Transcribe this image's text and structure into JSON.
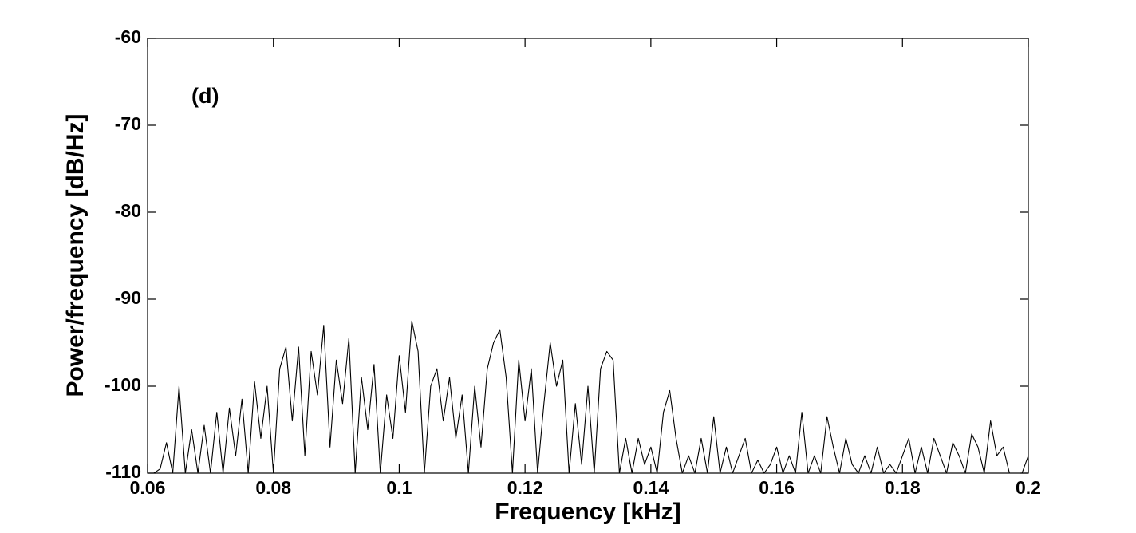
{
  "chart_data": {
    "type": "line",
    "annotation": "(d)",
    "x_label": "Frequency [kHz]",
    "y_label": "Power/frequency [dB/Hz]",
    "color": "#000000",
    "xlim": [
      0.06,
      0.2
    ],
    "ylim": [
      -110,
      -60
    ],
    "xticks": [
      0.06,
      0.08,
      0.1,
      0.12,
      0.14,
      0.16,
      0.18,
      0.2
    ],
    "yticks": [
      -110,
      -100,
      -90,
      -80,
      -70,
      -60
    ],
    "x": [
      0.06,
      0.061,
      0.062,
      0.063,
      0.064,
      0.065,
      0.066,
      0.067,
      0.068,
      0.069,
      0.07,
      0.071,
      0.072,
      0.073,
      0.074,
      0.075,
      0.076,
      0.077,
      0.078,
      0.079,
      0.08,
      0.081,
      0.082,
      0.083,
      0.084,
      0.085,
      0.086,
      0.087,
      0.088,
      0.089,
      0.09,
      0.091,
      0.092,
      0.093,
      0.094,
      0.095,
      0.096,
      0.097,
      0.098,
      0.099,
      0.1,
      0.101,
      0.102,
      0.103,
      0.104,
      0.105,
      0.106,
      0.107,
      0.108,
      0.109,
      0.11,
      0.111,
      0.112,
      0.113,
      0.114,
      0.115,
      0.116,
      0.117,
      0.118,
      0.119,
      0.12,
      0.121,
      0.122,
      0.123,
      0.124,
      0.125,
      0.126,
      0.127,
      0.128,
      0.129,
      0.13,
      0.131,
      0.132,
      0.133,
      0.134,
      0.135,
      0.136,
      0.137,
      0.138,
      0.139,
      0.14,
      0.141,
      0.142,
      0.143,
      0.144,
      0.145,
      0.146,
      0.147,
      0.148,
      0.149,
      0.15,
      0.151,
      0.152,
      0.153,
      0.154,
      0.155,
      0.156,
      0.157,
      0.158,
      0.159,
      0.16,
      0.161,
      0.162,
      0.163,
      0.164,
      0.165,
      0.166,
      0.167,
      0.168,
      0.169,
      0.17,
      0.171,
      0.172,
      0.173,
      0.174,
      0.175,
      0.176,
      0.177,
      0.178,
      0.179,
      0.18,
      0.181,
      0.182,
      0.183,
      0.184,
      0.185,
      0.186,
      0.187,
      0.188,
      0.189,
      0.19,
      0.191,
      0.192,
      0.193,
      0.194,
      0.195,
      0.196,
      0.197,
      0.198,
      0.199,
      0.2
    ],
    "values": [
      -110,
      -110,
      -109.5,
      -106.5,
      -110,
      -100,
      -110,
      -105,
      -110,
      -104.5,
      -110,
      -103,
      -110,
      -102.5,
      -108,
      -101.5,
      -110,
      -99.5,
      -106,
      -100,
      -110,
      -98,
      -95.5,
      -104,
      -95.5,
      -108,
      -96,
      -101,
      -93,
      -107,
      -97,
      -102,
      -94.5,
      -110,
      -99,
      -105,
      -97.5,
      -110,
      -101,
      -106,
      -96.5,
      -103,
      -92.5,
      -96,
      -110,
      -100,
      -98,
      -104,
      -99,
      -106,
      -101,
      -110,
      -100,
      -107,
      -98,
      -95,
      -93.5,
      -99,
      -110,
      -97,
      -104,
      -98,
      -110,
      -102,
      -95,
      -100,
      -97,
      -110,
      -102,
      -109,
      -100,
      -110,
      -98,
      -96,
      -97,
      -110,
      -106,
      -110,
      -106,
      -109,
      -107,
      -110,
      -103,
      -100.5,
      -106,
      -110,
      -108,
      -110,
      -106,
      -110,
      -103.5,
      -110,
      -107,
      -110,
      -108,
      -106,
      -110,
      -108.5,
      -110,
      -109,
      -107,
      -110,
      -108,
      -110,
      -103,
      -110,
      -108,
      -110,
      -103.5,
      -107,
      -110,
      -106,
      -109,
      -110,
      -108,
      -110,
      -107,
      -110,
      -109,
      -110,
      -108,
      -106,
      -110,
      -107,
      -110,
      -106,
      -108,
      -110,
      -106.5,
      -108,
      -110,
      -105.5,
      -107,
      -110,
      -104,
      -108,
      -107,
      -110,
      -110,
      -110,
      -108
    ]
  }
}
